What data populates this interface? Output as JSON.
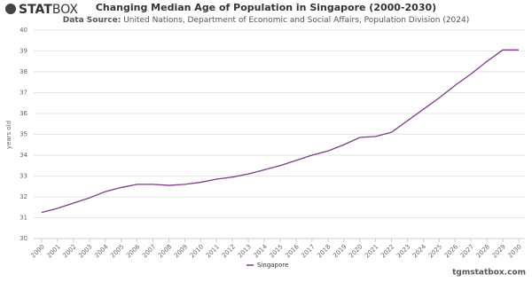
{
  "logo": {
    "bold": "STAT",
    "light": "BOX"
  },
  "chart_data": {
    "type": "line",
    "title": "Changing Median Age of Population in Singapore (2000-2030)",
    "subtitle_label": "Data Source:",
    "subtitle": "United Nations, Department of Economic and Social Affairs, Population Division (2024)",
    "y_label": "years old",
    "categories": [
      "2000",
      "2001",
      "2002",
      "2003",
      "2004",
      "2005",
      "2006",
      "2007",
      "2008",
      "2009",
      "2010",
      "2011",
      "2012",
      "2013",
      "2014",
      "2015",
      "2016",
      "2017",
      "2018",
      "2019",
      "2020",
      "2021",
      "2022",
      "2023",
      "2024",
      "2025",
      "2026",
      "2027",
      "2028",
      "2029",
      "2030"
    ],
    "series": [
      {
        "name": "Singapore",
        "color": "#7d3c8c",
        "values": [
          31.25,
          31.45,
          31.7,
          31.95,
          32.25,
          32.45,
          32.6,
          32.6,
          32.55,
          32.6,
          32.7,
          32.85,
          32.95,
          33.1,
          33.3,
          33.5,
          33.75,
          34.0,
          34.2,
          34.5,
          34.85,
          34.9,
          35.1,
          35.65,
          36.2,
          36.75,
          37.35,
          37.9,
          38.5,
          39.05,
          39.05
        ]
      }
    ],
    "ylim": [
      30,
      40
    ],
    "yticks": [
      30,
      31,
      32,
      33,
      34,
      35,
      36,
      37,
      38,
      39,
      40
    ],
    "grid": true,
    "legend": "bottom"
  },
  "footer": "tgmstatbox.com"
}
